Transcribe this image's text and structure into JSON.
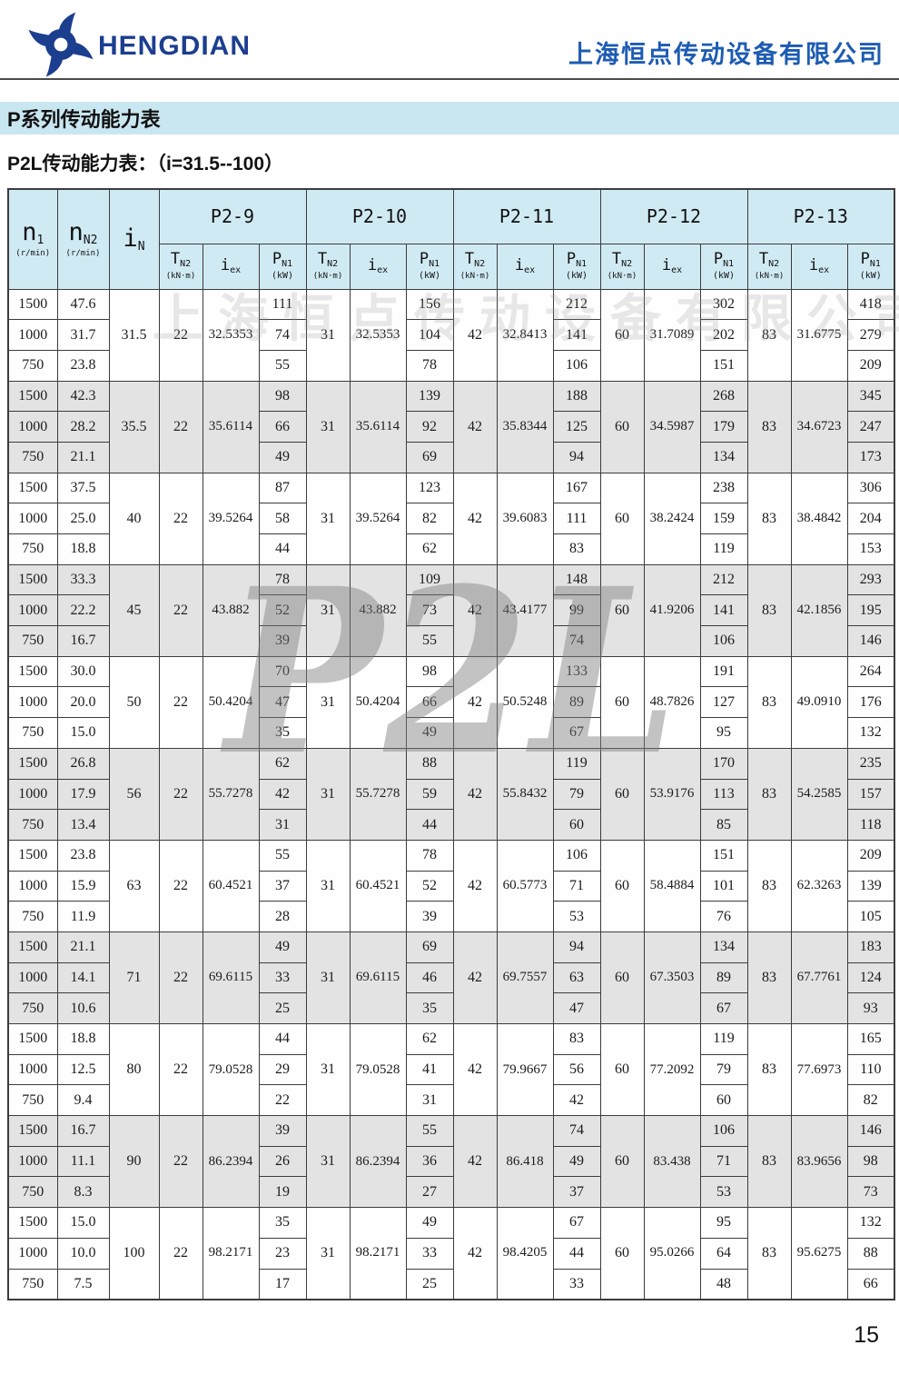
{
  "header": {
    "brand": "HENGDIAN",
    "company": "上海恒点传动设备有限公司"
  },
  "section_title": "P系列传动能力表",
  "subtitle": "P2L传动能力表：（i=31.5--100）",
  "watermarks": {
    "company": "上海恒点传动设备有限公司",
    "model": "P2L"
  },
  "page_number": "15",
  "colors": {
    "brand_blue": "#1c3e8f",
    "company_blue": "#1d5bb3",
    "title_bar_bg": "#c9e7f1",
    "table_header_bg": "#d0eaf4",
    "row_shade": "#e3e3e3",
    "border": "#3c3c3c"
  },
  "table": {
    "row_headers": {
      "n1": {
        "main": "n",
        "sub": "1",
        "unit": "(r/min)"
      },
      "nn2": {
        "main": "n",
        "sub": "N2",
        "unit": "(r/min)"
      },
      "in": {
        "main": "i",
        "sub": "N",
        "unit": ""
      }
    },
    "group_titles": [
      "P2-9",
      "P2-10",
      "P2-11",
      "P2-12",
      "P2-13"
    ],
    "sub_headers": {
      "t": {
        "main": "T",
        "sub": "N2",
        "unit": "(kN·m)"
      },
      "iex": {
        "main": "i",
        "sub": "ex",
        "unit": ""
      },
      "p": {
        "main": "P",
        "sub": "N1",
        "unit": "(kW)"
      }
    },
    "groups": [
      {
        "iN": "31.5",
        "rows": [
          [
            "1500",
            "47.6"
          ],
          [
            "1000",
            "31.7"
          ],
          [
            "750",
            "23.8"
          ]
        ],
        "cols": [
          {
            "t": "22",
            "iex": "32.5353",
            "p": [
              "111",
              "74",
              "55"
            ]
          },
          {
            "t": "31",
            "iex": "32.5353",
            "p": [
              "156",
              "104",
              "78"
            ]
          },
          {
            "t": "42",
            "iex": "32.8413",
            "p": [
              "212",
              "141",
              "106"
            ]
          },
          {
            "t": "60",
            "iex": "31.7089",
            "p": [
              "302",
              "202",
              "151"
            ]
          },
          {
            "t": "83",
            "iex": "31.6775",
            "p": [
              "418",
              "279",
              "209"
            ]
          }
        ]
      },
      {
        "iN": "35.5",
        "rows": [
          [
            "1500",
            "42.3"
          ],
          [
            "1000",
            "28.2"
          ],
          [
            "750",
            "21.1"
          ]
        ],
        "cols": [
          {
            "t": "22",
            "iex": "35.6114",
            "p": [
              "98",
              "66",
              "49"
            ]
          },
          {
            "t": "31",
            "iex": "35.6114",
            "p": [
              "139",
              "92",
              "69"
            ]
          },
          {
            "t": "42",
            "iex": "35.8344",
            "p": [
              "188",
              "125",
              "94"
            ]
          },
          {
            "t": "60",
            "iex": "34.5987",
            "p": [
              "268",
              "179",
              "134"
            ]
          },
          {
            "t": "83",
            "iex": "34.6723",
            "p": [
              "345",
              "247",
              "173"
            ]
          }
        ]
      },
      {
        "iN": "40",
        "rows": [
          [
            "1500",
            "37.5"
          ],
          [
            "1000",
            "25.0"
          ],
          [
            "750",
            "18.8"
          ]
        ],
        "cols": [
          {
            "t": "22",
            "iex": "39.5264",
            "p": [
              "87",
              "58",
              "44"
            ]
          },
          {
            "t": "31",
            "iex": "39.5264",
            "p": [
              "123",
              "82",
              "62"
            ]
          },
          {
            "t": "42",
            "iex": "39.6083",
            "p": [
              "167",
              "111",
              "83"
            ]
          },
          {
            "t": "60",
            "iex": "38.2424",
            "p": [
              "238",
              "159",
              "119"
            ]
          },
          {
            "t": "83",
            "iex": "38.4842",
            "p": [
              "306",
              "204",
              "153"
            ]
          }
        ]
      },
      {
        "iN": "45",
        "rows": [
          [
            "1500",
            "33.3"
          ],
          [
            "1000",
            "22.2"
          ],
          [
            "750",
            "16.7"
          ]
        ],
        "cols": [
          {
            "t": "22",
            "iex": "43.882",
            "p": [
              "78",
              "52",
              "39"
            ]
          },
          {
            "t": "31",
            "iex": "43.882",
            "p": [
              "109",
              "73",
              "55"
            ]
          },
          {
            "t": "42",
            "iex": "43.4177",
            "p": [
              "148",
              "99",
              "74"
            ]
          },
          {
            "t": "60",
            "iex": "41.9206",
            "p": [
              "212",
              "141",
              "106"
            ]
          },
          {
            "t": "83",
            "iex": "42.1856",
            "p": [
              "293",
              "195",
              "146"
            ]
          }
        ]
      },
      {
        "iN": "50",
        "rows": [
          [
            "1500",
            "30.0"
          ],
          [
            "1000",
            "20.0"
          ],
          [
            "750",
            "15.0"
          ]
        ],
        "cols": [
          {
            "t": "22",
            "iex": "50.4204",
            "p": [
              "70",
              "47",
              "35"
            ]
          },
          {
            "t": "31",
            "iex": "50.4204",
            "p": [
              "98",
              "66",
              "49"
            ]
          },
          {
            "t": "42",
            "iex": "50.5248",
            "p": [
              "133",
              "89",
              "67"
            ]
          },
          {
            "t": "60",
            "iex": "48.7826",
            "p": [
              "191",
              "127",
              "95"
            ]
          },
          {
            "t": "83",
            "iex": "49.0910",
            "p": [
              "264",
              "176",
              "132"
            ]
          }
        ]
      },
      {
        "iN": "56",
        "rows": [
          [
            "1500",
            "26.8"
          ],
          [
            "1000",
            "17.9"
          ],
          [
            "750",
            "13.4"
          ]
        ],
        "cols": [
          {
            "t": "22",
            "iex": "55.7278",
            "p": [
              "62",
              "42",
              "31"
            ]
          },
          {
            "t": "31",
            "iex": "55.7278",
            "p": [
              "88",
              "59",
              "44"
            ]
          },
          {
            "t": "42",
            "iex": "55.8432",
            "p": [
              "119",
              "79",
              "60"
            ]
          },
          {
            "t": "60",
            "iex": "53.9176",
            "p": [
              "170",
              "113",
              "85"
            ]
          },
          {
            "t": "83",
            "iex": "54.2585",
            "p": [
              "235",
              "157",
              "118"
            ]
          }
        ]
      },
      {
        "iN": "63",
        "rows": [
          [
            "1500",
            "23.8"
          ],
          [
            "1000",
            "15.9"
          ],
          [
            "750",
            "11.9"
          ]
        ],
        "cols": [
          {
            "t": "22",
            "iex": "60.4521",
            "p": [
              "55",
              "37",
              "28"
            ]
          },
          {
            "t": "31",
            "iex": "60.4521",
            "p": [
              "78",
              "52",
              "39"
            ]
          },
          {
            "t": "42",
            "iex": "60.5773",
            "p": [
              "106",
              "71",
              "53"
            ]
          },
          {
            "t": "60",
            "iex": "58.4884",
            "p": [
              "151",
              "101",
              "76"
            ]
          },
          {
            "t": "83",
            "iex": "62.3263",
            "p": [
              "209",
              "139",
              "105"
            ]
          }
        ]
      },
      {
        "iN": "71",
        "rows": [
          [
            "1500",
            "21.1"
          ],
          [
            "1000",
            "14.1"
          ],
          [
            "750",
            "10.6"
          ]
        ],
        "cols": [
          {
            "t": "22",
            "iex": "69.6115",
            "p": [
              "49",
              "33",
              "25"
            ]
          },
          {
            "t": "31",
            "iex": "69.6115",
            "p": [
              "69",
              "46",
              "35"
            ]
          },
          {
            "t": "42",
            "iex": "69.7557",
            "p": [
              "94",
              "63",
              "47"
            ]
          },
          {
            "t": "60",
            "iex": "67.3503",
            "p": [
              "134",
              "89",
              "67"
            ]
          },
          {
            "t": "83",
            "iex": "67.7761",
            "p": [
              "183",
              "124",
              "93"
            ]
          }
        ]
      },
      {
        "iN": "80",
        "rows": [
          [
            "1500",
            "18.8"
          ],
          [
            "1000",
            "12.5"
          ],
          [
            "750",
            "9.4"
          ]
        ],
        "cols": [
          {
            "t": "22",
            "iex": "79.0528",
            "p": [
              "44",
              "29",
              "22"
            ]
          },
          {
            "t": "31",
            "iex": "79.0528",
            "p": [
              "62",
              "41",
              "31"
            ]
          },
          {
            "t": "42",
            "iex": "79.9667",
            "p": [
              "83",
              "56",
              "42"
            ]
          },
          {
            "t": "60",
            "iex": "77.2092",
            "p": [
              "119",
              "79",
              "60"
            ]
          },
          {
            "t": "83",
            "iex": "77.6973",
            "p": [
              "165",
              "110",
              "82"
            ]
          }
        ]
      },
      {
        "iN": "90",
        "rows": [
          [
            "1500",
            "16.7"
          ],
          [
            "1000",
            "11.1"
          ],
          [
            "750",
            "8.3"
          ]
        ],
        "cols": [
          {
            "t": "22",
            "iex": "86.2394",
            "p": [
              "39",
              "26",
              "19"
            ]
          },
          {
            "t": "31",
            "iex": "86.2394",
            "p": [
              "55",
              "36",
              "27"
            ]
          },
          {
            "t": "42",
            "iex": "86.418",
            "p": [
              "74",
              "49",
              "37"
            ]
          },
          {
            "t": "60",
            "iex": "83.438",
            "p": [
              "106",
              "71",
              "53"
            ]
          },
          {
            "t": "83",
            "iex": "83.9656",
            "p": [
              "146",
              "98",
              "73"
            ]
          }
        ]
      },
      {
        "iN": "100",
        "rows": [
          [
            "1500",
            "15.0"
          ],
          [
            "1000",
            "10.0"
          ],
          [
            "750",
            "7.5"
          ]
        ],
        "cols": [
          {
            "t": "22",
            "iex": "98.2171",
            "p": [
              "35",
              "23",
              "17"
            ]
          },
          {
            "t": "31",
            "iex": "98.2171",
            "p": [
              "49",
              "33",
              "25"
            ]
          },
          {
            "t": "42",
            "iex": "98.4205",
            "p": [
              "67",
              "44",
              "33"
            ]
          },
          {
            "t": "60",
            "iex": "95.0266",
            "p": [
              "95",
              "64",
              "48"
            ]
          },
          {
            "t": "83",
            "iex": "95.6275",
            "p": [
              "132",
              "88",
              "66"
            ]
          }
        ]
      }
    ]
  }
}
